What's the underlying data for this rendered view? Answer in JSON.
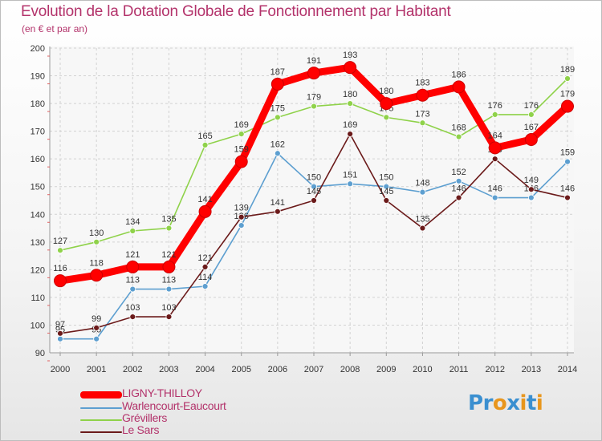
{
  "title": "Evolution de la Dotation Globale de Fonctionnement par Habitant",
  "subtitle": "(en € et par an)",
  "logo": {
    "letters": [
      "P",
      "r",
      "o",
      "x",
      "i",
      "t",
      "i"
    ],
    "colors": [
      "#3a8fd0",
      "#3a8fd0",
      "#e8961d",
      "#3a8fd0",
      "#e8961d",
      "#3a8fd0",
      "#e8961d"
    ]
  },
  "chart_data": {
    "type": "line",
    "title": "Evolution de la Dotation Globale de Fonctionnement par Habitant",
    "subtitle": "(en € et par an)",
    "xlabel": "",
    "ylabel": "",
    "x": [
      "2000",
      "2001",
      "2002",
      "2003",
      "2004",
      "2005",
      "2006",
      "2007",
      "2008",
      "2009",
      "2010",
      "2011",
      "2012",
      "2013",
      "2014"
    ],
    "ylim": [
      90,
      200
    ],
    "yticks": [
      90,
      100,
      110,
      120,
      130,
      140,
      150,
      160,
      170,
      180,
      190,
      200
    ],
    "grid": true,
    "legend_position": "bottom-left",
    "series": [
      {
        "name": "Warlencourt-Eaucourt",
        "color": "#5d9fd0",
        "values": [
          95,
          95,
          113,
          113,
          114,
          136,
          162,
          150,
          151,
          150,
          148,
          152,
          146,
          146,
          159
        ],
        "labels": [
          "95",
          "95",
          "113",
          "113",
          "114",
          "136",
          "162",
          "150",
          "151",
          "150",
          "148",
          "152",
          "146",
          "146",
          "159"
        ]
      },
      {
        "name": "Grévillers",
        "color": "#8fd24a",
        "values": [
          127,
          130,
          134,
          135,
          165,
          169,
          175,
          179,
          180,
          175,
          173,
          168,
          176,
          176,
          189
        ],
        "labels": [
          "127",
          "130",
          "134",
          "135",
          "165",
          "169",
          "175",
          "179",
          "180",
          "175",
          "173",
          "168",
          "176",
          "176",
          "189"
        ]
      },
      {
        "name": "Le Sars",
        "color": "#6b1a1a",
        "values": [
          97,
          99,
          103,
          103,
          121,
          139,
          141,
          145,
          169,
          145,
          135,
          146,
          160,
          149,
          146
        ],
        "labels": [
          "97",
          "99",
          "103",
          "103",
          "121",
          "139",
          "141",
          "145",
          "169",
          "145",
          "135",
          "146",
          "160",
          "149",
          "146"
        ]
      },
      {
        "name": "LIGNY-THILLOY",
        "color": "#ff0000",
        "values": [
          116,
          118,
          121,
          121,
          141,
          159,
          187,
          191,
          193,
          180,
          183,
          186,
          164,
          167,
          179
        ],
        "labels": [
          "116",
          "118",
          "121",
          "121",
          "141",
          "159",
          "187",
          "191",
          "193",
          "180",
          "183",
          "186",
          "164",
          "167",
          "179"
        ]
      }
    ],
    "legend_order": [
      "LIGNY-THILLOY",
      "Warlencourt-Eaucourt",
      "Grévillers",
      "Le Sars"
    ]
  }
}
